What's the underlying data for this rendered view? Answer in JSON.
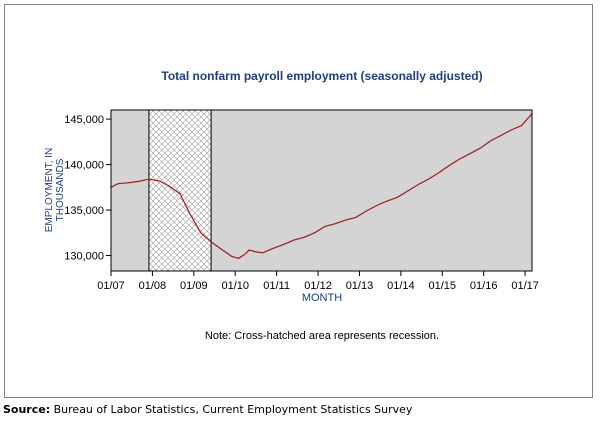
{
  "chart_data": {
    "type": "line",
    "title": "Total nonfarm payroll employment (seasonally adjusted)",
    "xlabel": "MONTH",
    "ylabel": "EMPLOYMENT, IN THOUSANDS",
    "x_ticks": [
      "01/07",
      "01/08",
      "01/09",
      "01/10",
      "01/11",
      "01/12",
      "01/13",
      "01/14",
      "01/15",
      "01/16",
      "01/17"
    ],
    "y_ticks": [
      130000,
      135000,
      140000,
      145000
    ],
    "y_tick_labels": [
      "130,000",
      "135,000",
      "140,000",
      "145,000"
    ],
    "xlim": [
      "2007-01",
      "2017-03"
    ],
    "ylim": [
      128300,
      146000
    ],
    "grid": false,
    "recession": {
      "start": "2007-12",
      "end": "2009-06"
    },
    "series": [
      {
        "color": "#a01818",
        "points": [
          [
            "2007-01",
            137500
          ],
          [
            "2007-03",
            137900
          ],
          [
            "2007-06",
            138000
          ],
          [
            "2007-09",
            138150
          ],
          [
            "2007-12",
            138400
          ],
          [
            "2008-03",
            138200
          ],
          [
            "2008-06",
            137600
          ],
          [
            "2008-09",
            136800
          ],
          [
            "2008-12",
            134500
          ],
          [
            "2009-03",
            132500
          ],
          [
            "2009-06",
            131500
          ],
          [
            "2009-09",
            130700
          ],
          [
            "2009-12",
            129900
          ],
          [
            "2010-02",
            129700
          ],
          [
            "2010-04",
            130200
          ],
          [
            "2010-05",
            130600
          ],
          [
            "2010-07",
            130400
          ],
          [
            "2010-09",
            130300
          ],
          [
            "2010-12",
            130800
          ],
          [
            "2011-03",
            131200
          ],
          [
            "2011-06",
            131700
          ],
          [
            "2011-09",
            132000
          ],
          [
            "2011-12",
            132500
          ],
          [
            "2012-03",
            133200
          ],
          [
            "2012-06",
            133500
          ],
          [
            "2012-09",
            133900
          ],
          [
            "2012-12",
            134200
          ],
          [
            "2013-03",
            134900
          ],
          [
            "2013-06",
            135500
          ],
          [
            "2013-09",
            136000
          ],
          [
            "2013-12",
            136400
          ],
          [
            "2014-03",
            137100
          ],
          [
            "2014-06",
            137800
          ],
          [
            "2014-09",
            138400
          ],
          [
            "2014-12",
            139100
          ],
          [
            "2015-03",
            139900
          ],
          [
            "2015-06",
            140600
          ],
          [
            "2015-09",
            141200
          ],
          [
            "2015-12",
            141800
          ],
          [
            "2016-03",
            142600
          ],
          [
            "2016-06",
            143200
          ],
          [
            "2016-09",
            143800
          ],
          [
            "2016-12",
            144300
          ],
          [
            "2017-03",
            145600
          ]
        ]
      }
    ],
    "note": "Note: Cross-hatched area represents recession."
  },
  "source": {
    "label": "Source:",
    "text": "Bureau of Labor Statistics, Current Employment Statistics Survey"
  },
  "colors": {
    "plot_background": "#d4d4d4",
    "title_text": "#1c3c8c",
    "axis_label_text": "#1c3c8c",
    "line": "#a01818"
  }
}
